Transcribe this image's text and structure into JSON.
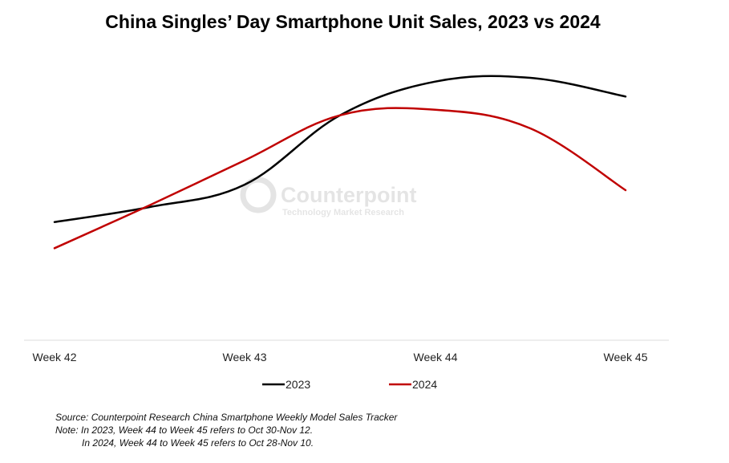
{
  "chart_data": {
    "type": "line",
    "title": "China Singles’ Day Smartphone Unit Sales, 2023 vs 2024",
    "categories": [
      "Week 42",
      "Week 43",
      "Week 44",
      "Week 45"
    ],
    "x": [
      42,
      42.5,
      43,
      43.5,
      44,
      44.5,
      45
    ],
    "series": [
      {
        "name": "2023",
        "color": "#000000",
        "values": [
          0.33,
          0.41,
          0.53,
          0.9,
          1.08,
          1.1,
          1.0
        ]
      },
      {
        "name": "2024",
        "color": "#c00000",
        "values": [
          0.19,
          0.42,
          0.66,
          0.9,
          0.93,
          0.83,
          0.5
        ]
      }
    ],
    "ylim": [
      -0.25,
      1.25
    ],
    "grid": false,
    "legend": "bottom-center",
    "xlabel": "",
    "ylabel": ""
  },
  "watermark": {
    "name": "Counterpoint",
    "tagline": "Technology Market Research"
  },
  "notes": {
    "source": "Source: Counterpoint Research China Smartphone Weekly Model Sales Tracker",
    "note_line1": "Note: In 2023, Week 44 to Week 45 refers to Oct 30-Nov 12.",
    "note_line2": "In 2024, Week 44 to Week 45 refers to Oct 28-Nov 10."
  }
}
